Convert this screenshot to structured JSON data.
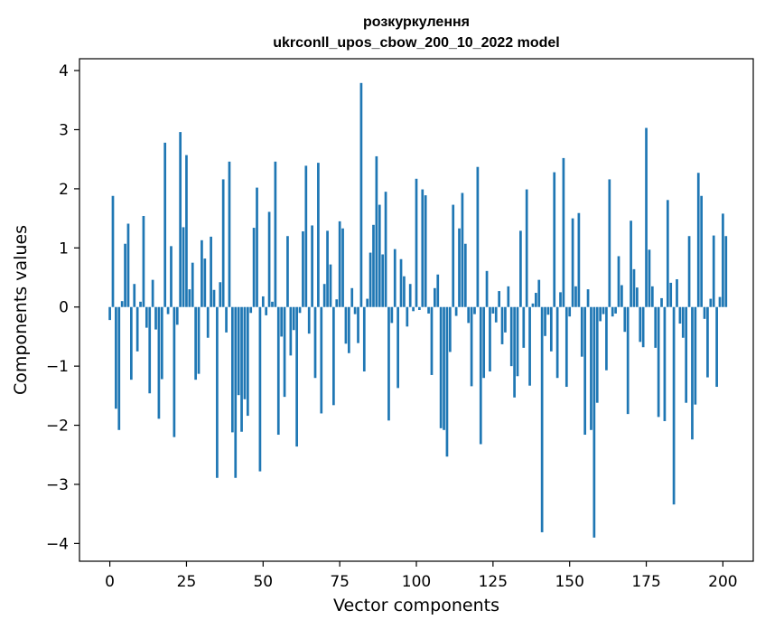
{
  "chart_data": {
    "type": "bar",
    "title": "розкуркулення",
    "subtitle": "ukrconll_upos_cbow_200_10_2022 model",
    "xlabel": "Vector components",
    "ylabel": "Components values",
    "xlim": [
      -9.9,
      209.9
    ],
    "ylim": [
      -4.3,
      4.2
    ],
    "xticks": [
      0,
      25,
      50,
      75,
      100,
      125,
      150,
      175,
      200
    ],
    "yticks": [
      -4,
      -3,
      -2,
      -1,
      0,
      1,
      2,
      3,
      4
    ],
    "bar_color": "#1f77b4",
    "x_start": 0,
    "values": [
      -0.22,
      1.88,
      -1.72,
      -2.08,
      0.1,
      1.07,
      1.41,
      -1.23,
      0.39,
      -0.75,
      0.09,
      1.54,
      -0.35,
      -1.46,
      0.46,
      -0.38,
      -1.89,
      -1.22,
      2.78,
      -0.12,
      1.03,
      -2.2,
      -0.3,
      2.96,
      1.35,
      2.57,
      0.3,
      0.75,
      -1.23,
      -1.13,
      1.13,
      0.82,
      -0.52,
      1.19,
      0.29,
      -2.89,
      0.42,
      2.16,
      -0.43,
      2.46,
      -2.12,
      -2.89,
      -1.49,
      -2.11,
      -1.56,
      -1.84,
      -0.1,
      1.34,
      2.02,
      -2.78,
      0.18,
      -0.14,
      1.61,
      0.09,
      2.46,
      -2.16,
      -0.5,
      -1.52,
      1.2,
      -0.82,
      -0.39,
      -2.36,
      -0.1,
      1.28,
      2.39,
      -0.45,
      1.38,
      -1.2,
      2.44,
      -1.8,
      0.39,
      1.29,
      0.72,
      -1.66,
      0.13,
      1.45,
      1.33,
      -0.62,
      -0.78,
      0.32,
      -0.12,
      -0.61,
      3.79,
      -1.09,
      0.14,
      0.92,
      1.39,
      2.55,
      1.73,
      0.89,
      1.95,
      -1.92,
      -0.27,
      0.98,
      -1.37,
      0.81,
      0.52,
      -0.33,
      0.39,
      -0.07,
      2.17,
      -0.05,
      1.99,
      1.89,
      -0.11,
      -1.15,
      0.32,
      0.55,
      -2.05,
      -2.08,
      -2.53,
      -0.76,
      1.73,
      -0.15,
      1.33,
      1.93,
      1.07,
      -0.27,
      -1.34,
      -0.12,
      2.37,
      -2.32,
      -1.2,
      0.61,
      -1.09,
      -0.11,
      -0.26,
      0.27,
      -0.63,
      -0.43,
      0.35,
      -1.0,
      -1.53,
      -1.17,
      1.29,
      -0.69,
      1.99,
      -1.33,
      0.06,
      0.24,
      0.46,
      -3.81,
      -0.49,
      -0.13,
      -0.75,
      2.28,
      -1.2,
      0.25,
      2.52,
      -1.35,
      -0.16,
      1.5,
      0.35,
      1.59,
      -0.84,
      -2.16,
      0.3,
      -2.08,
      -3.9,
      -1.62,
      -0.24,
      -0.12,
      -1.07,
      2.16,
      -0.16,
      -0.11,
      0.86,
      0.37,
      -0.42,
      -1.81,
      1.46,
      0.64,
      0.33,
      -0.59,
      -0.68,
      3.03,
      0.97,
      0.35,
      -0.69,
      -1.86,
      0.15,
      -1.93,
      1.81,
      0.41,
      -3.34,
      0.47,
      -0.28,
      -0.52,
      -1.62,
      1.2,
      -2.24,
      -1.65,
      2.27,
      1.88,
      -0.2,
      -1.19,
      0.14,
      1.21,
      -1.35,
      0.17,
      1.58,
      1.2
    ]
  }
}
